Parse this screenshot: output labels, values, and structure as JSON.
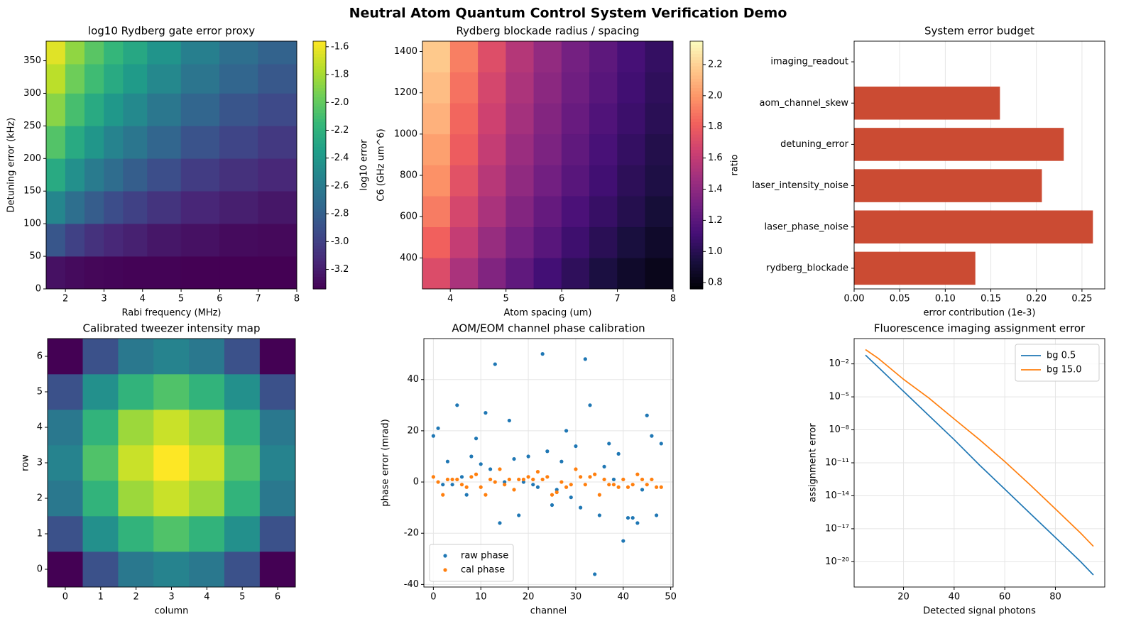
{
  "title": "Neutral Atom Quantum Control System Verification Demo",
  "chart_data": [
    {
      "type": "heatmap",
      "title": "log10 Rydberg gate error proxy",
      "xlabel": "Rabi frequency (MHz)",
      "ylabel": "Detuning error (kHz)",
      "colorbar_label": "log10 error",
      "colormap": "viridis",
      "x": [
        1.75,
        2.25,
        2.75,
        3.25,
        3.75,
        4.5,
        5.5,
        6.5,
        7.5
      ],
      "y": [
        25,
        75,
        125,
        175,
        225,
        275,
        325,
        365
      ],
      "z": [
        [
          -3.26,
          -3.29,
          -3.31,
          -3.32,
          -3.33,
          -3.33,
          -3.34,
          -3.34,
          -3.34
        ],
        [
          -2.86,
          -2.99,
          -3.08,
          -3.14,
          -3.18,
          -3.23,
          -3.26,
          -3.29,
          -3.3
        ],
        [
          -2.52,
          -2.69,
          -2.82,
          -2.92,
          -2.99,
          -3.07,
          -3.15,
          -3.19,
          -3.23
        ],
        [
          -2.26,
          -2.45,
          -2.6,
          -2.71,
          -2.81,
          -2.91,
          -3.02,
          -3.09,
          -3.14
        ],
        [
          -2.05,
          -2.26,
          -2.41,
          -2.54,
          -2.64,
          -2.76,
          -2.88,
          -2.97,
          -3.04
        ],
        [
          -1.88,
          -2.09,
          -2.26,
          -2.39,
          -2.5,
          -2.63,
          -2.76,
          -2.87,
          -2.94
        ],
        [
          -1.74,
          -1.96,
          -2.12,
          -2.26,
          -2.37,
          -2.51,
          -2.65,
          -2.76,
          -2.85
        ],
        [
          -1.64,
          -1.86,
          -2.03,
          -2.16,
          -2.28,
          -2.42,
          -2.57,
          -2.69,
          -2.78
        ]
      ],
      "xlim": [
        1.5,
        8
      ],
      "ylim": [
        0,
        380
      ],
      "xticks": [
        2,
        3,
        4,
        5,
        6,
        7,
        8
      ],
      "yticks": [
        0,
        50,
        100,
        150,
        200,
        250,
        300,
        350
      ],
      "clim": [
        -3.34,
        -1.56
      ],
      "cticks": [
        -1.6,
        -1.8,
        {
          "value": -2,
          "label": "-2.0"
        },
        -2.2,
        -2.4,
        -2.6,
        -2.8,
        {
          "value": -3,
          "label": "-3.0"
        },
        -3.2
      ]
    },
    {
      "type": "heatmap",
      "title": "Rydberg blockade radius / spacing",
      "xlabel": "Atom spacing (um)",
      "ylabel": "C6 (GHz um^6)",
      "colorbar_label": "ratio",
      "colormap": "magma",
      "x": [
        3.75,
        4.25,
        4.75,
        5.25,
        5.75,
        6.25,
        6.75,
        7.25,
        7.75
      ],
      "y": [
        325,
        475,
        625,
        775,
        925,
        1075,
        1225,
        1375
      ],
      "z": [
        [
          1.71,
          1.51,
          1.35,
          1.22,
          1.11,
          1.03,
          0.95,
          0.88,
          0.83
        ],
        [
          1.82,
          1.61,
          1.44,
          1.3,
          1.19,
          1.09,
          1.01,
          0.94,
          0.88
        ],
        [
          1.91,
          1.68,
          1.51,
          1.36,
          1.24,
          1.14,
          1.06,
          0.99,
          0.92
        ],
        [
          1.98,
          1.74,
          1.56,
          1.41,
          1.29,
          1.19,
          1.1,
          1.02,
          0.96
        ],
        [
          2.03,
          1.8,
          1.61,
          1.45,
          1.33,
          1.22,
          1.13,
          1.05,
          0.98
        ],
        [
          2.09,
          1.84,
          1.65,
          1.49,
          1.36,
          1.25,
          1.16,
          1.08,
          1.01
        ],
        [
          2.13,
          1.88,
          1.68,
          1.52,
          1.39,
          1.28,
          1.19,
          1.1,
          1.03
        ],
        [
          2.17,
          1.92,
          1.72,
          1.55,
          1.42,
          1.3,
          1.21,
          1.12,
          1.05
        ]
      ],
      "xlim": [
        3.5,
        8
      ],
      "ylim": [
        250,
        1450
      ],
      "xticks": [
        4,
        5,
        6,
        7,
        8
      ],
      "yticks": [
        400,
        600,
        800,
        1000,
        1200,
        1400
      ],
      "clim": [
        0.76,
        2.35
      ],
      "cticks": [
        0.8,
        {
          "value": 1,
          "label": "1.0"
        },
        1.2,
        1.4,
        1.6,
        1.8,
        {
          "value": 2,
          "label": "2.0"
        },
        2.2
      ]
    },
    {
      "type": "barh",
      "title": "System error budget",
      "xlabel": "error contribution (1e-3)",
      "color": "#cb4b33",
      "categories": [
        "rydberg_blockade",
        "laser_phase_noise",
        "laser_intensity_noise",
        "detuning_error",
        "aom_channel_skew",
        "imaging_readout"
      ],
      "values": [
        0.133,
        0.262,
        0.206,
        0.23,
        0.16,
        0
      ],
      "xlim": [
        0,
        0.275
      ],
      "xticks": [
        {
          "value": 0,
          "label": "0.00"
        },
        0.05,
        {
          "value": 0.1,
          "label": "0.10"
        },
        0.15,
        {
          "value": 0.2,
          "label": "0.20"
        },
        0.25
      ],
      "grid": "x"
    },
    {
      "type": "heatmap",
      "title": "Calibrated tweezer intensity map",
      "xlabel": "column",
      "ylabel": "row",
      "colormap": "viridis",
      "x": [
        0,
        1,
        2,
        3,
        4,
        5,
        6
      ],
      "y": [
        0,
        1,
        2,
        3,
        4,
        5,
        6
      ],
      "z": [
        [
          0.0,
          0.25,
          0.4,
          0.45,
          0.4,
          0.25,
          0.0
        ],
        [
          0.25,
          0.5,
          0.65,
          0.72,
          0.65,
          0.5,
          0.25
        ],
        [
          0.4,
          0.65,
          0.85,
          0.92,
          0.85,
          0.65,
          0.4
        ],
        [
          0.45,
          0.72,
          0.92,
          1.0,
          0.92,
          0.72,
          0.45
        ],
        [
          0.4,
          0.65,
          0.85,
          0.92,
          0.85,
          0.65,
          0.4
        ],
        [
          0.25,
          0.5,
          0.65,
          0.72,
          0.65,
          0.5,
          0.25
        ],
        [
          0.0,
          0.25,
          0.4,
          0.45,
          0.4,
          0.25,
          0.0
        ]
      ],
      "xlim": [
        -0.5,
        6.5
      ],
      "ylim": [
        -0.5,
        6.5
      ],
      "xticks": [
        0,
        1,
        2,
        3,
        4,
        5,
        6
      ],
      "yticks": [
        0,
        1,
        2,
        3,
        4,
        5,
        6
      ]
    },
    {
      "type": "scatter",
      "title": "AOM/EOM channel phase calibration",
      "xlabel": "channel",
      "ylabel": "phase error (mrad)",
      "legend": "lower left",
      "grid": true,
      "x": [
        0,
        1,
        2,
        3,
        4,
        5,
        6,
        7,
        8,
        9,
        10,
        11,
        12,
        13,
        14,
        15,
        16,
        17,
        18,
        19,
        20,
        21,
        22,
        23,
        24,
        25,
        26,
        27,
        28,
        29,
        30,
        31,
        32,
        33,
        34,
        35,
        36,
        37,
        38,
        39,
        40,
        41,
        42,
        43,
        44,
        45,
        46,
        47,
        48
      ],
      "series": [
        {
          "name": "raw phase",
          "color": "#1f77b4",
          "values": [
            18,
            21,
            -1,
            8,
            -1,
            30,
            2,
            -5,
            10,
            17,
            7,
            27,
            5,
            46,
            -16,
            0,
            24,
            9,
            -13,
            0,
            10,
            -1,
            -2,
            50,
            12,
            -9,
            -3,
            8,
            20,
            -6,
            14,
            -10,
            48,
            30,
            -36,
            -13,
            6,
            15,
            1,
            11,
            -23,
            -14,
            -14,
            -16,
            -3,
            26,
            18,
            -13,
            15
          ]
        },
        {
          "name": "cal phase",
          "color": "#ff7f0e",
          "values": [
            2,
            0,
            -5,
            1,
            1,
            1,
            -1,
            -2,
            2,
            3,
            -2,
            -5,
            1,
            0,
            5,
            -1,
            1,
            -3,
            1,
            1,
            2,
            1,
            4,
            1,
            2,
            -5,
            -4,
            0,
            -2,
            -1,
            5,
            2,
            -1,
            2,
            3,
            -5,
            1,
            -1,
            -1,
            -2,
            1,
            -2,
            -1,
            3,
            1,
            -1,
            1,
            -2,
            -2
          ]
        }
      ],
      "xlim": [
        -2,
        50.5
      ],
      "ylim": [
        -41,
        56
      ],
      "xticks": [
        0,
        10,
        20,
        30,
        40,
        50
      ],
      "yticks": [
        -40,
        -20,
        0,
        20,
        40
      ]
    },
    {
      "type": "line",
      "title": "Fluorescence imaging assignment error",
      "xlabel": "Detected signal photons",
      "ylabel": "assignment error",
      "legend": "upper right",
      "grid": true,
      "yscale": "log",
      "x": [
        5,
        10,
        20,
        30,
        40,
        50,
        60,
        70,
        80,
        90,
        95
      ],
      "series": [
        {
          "name": "bg 0.5",
          "color": "#1f77b4",
          "values": [
            0.063,
            0.005,
            3.2e-05,
            2e-07,
            1.3e-09,
            6.3e-12,
            4e-14,
            2.5e-16,
            1.6e-18,
            1e-20,
            6.3e-22
          ]
        },
        {
          "name": "bg 15.0",
          "color": "#ff7f0e",
          "values": [
            0.2,
            0.032,
            0.0004,
            7.9e-06,
            1e-07,
            1.3e-09,
            1.3e-11,
            1e-13,
            6.3e-16,
            4e-18,
            2.5e-19
          ]
        }
      ],
      "xlim": [
        0.5,
        99.5
      ],
      "ylim": [
        5e-23,
        2
      ],
      "xticks": [
        20,
        40,
        60,
        80
      ],
      "yticks": [
        {
          "value": 0.01,
          "label": "10⁻²"
        },
        {
          "value": 1e-05,
          "label": "10⁻⁵"
        },
        {
          "value": 1e-08,
          "label": "10⁻⁸"
        },
        {
          "value": 1e-11,
          "label": "10⁻¹¹"
        },
        {
          "value": 1e-14,
          "label": "10⁻¹⁴"
        },
        {
          "value": 1e-17,
          "label": "10⁻¹⁷"
        },
        {
          "value": 1e-20,
          "label": "10⁻²⁰"
        }
      ]
    }
  ]
}
